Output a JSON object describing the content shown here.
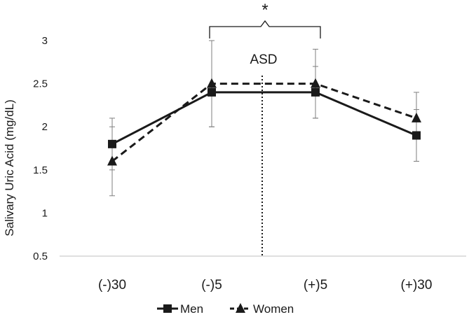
{
  "chart_data": {
    "type": "line",
    "categories": [
      "(-)30",
      "(-)5",
      "(+)5",
      "(+)30"
    ],
    "series": [
      {
        "name": "Men",
        "marker": "square",
        "dash": "solid",
        "values": [
          1.8,
          2.4,
          2.4,
          1.9
        ],
        "err_low": [
          1.5,
          2.0,
          2.1,
          1.6
        ],
        "err_high": [
          2.1,
          3.0,
          2.7,
          2.2
        ]
      },
      {
        "name": "Women",
        "marker": "triangle",
        "dash": "dashed",
        "values": [
          1.6,
          2.5,
          2.5,
          2.1
        ],
        "err_low": [
          1.2,
          2.0,
          2.1,
          1.6
        ],
        "err_high": [
          2.0,
          3.0,
          2.9,
          2.4
        ]
      }
    ],
    "ylabel": "Salivary Uric Acid (mg/dL)",
    "ylim": [
      0.5,
      3
    ],
    "yticks": [
      "0.5",
      "1",
      "1.5",
      "2",
      "2.5",
      "3"
    ],
    "grid": false,
    "legend": "bottom-center",
    "annotations": {
      "divider_label": "ASD",
      "significance": "*"
    },
    "color": "#1a1a1a"
  }
}
